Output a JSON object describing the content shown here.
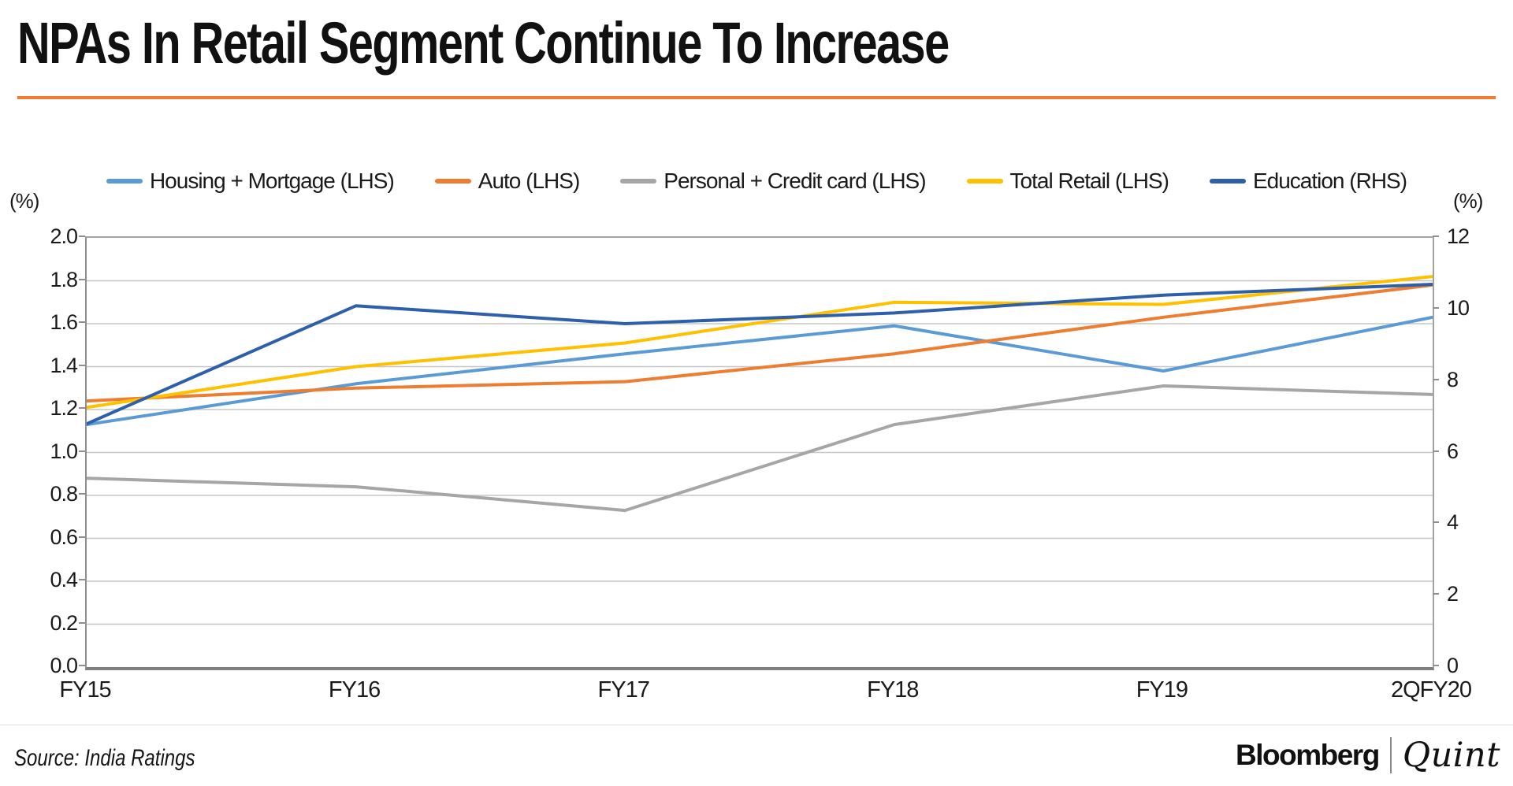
{
  "accent_rule_color": "#ED7D31",
  "chart_data": {
    "type": "line",
    "title": "NPAs In Retail Segment Continue To Increase",
    "categories": [
      "FY15",
      "FY16",
      "FY17",
      "FY18",
      "FY19",
      "2QFY20"
    ],
    "left_axis": {
      "unit": "(%)",
      "min": 0,
      "max": 2,
      "ticks_top_to_bottom": [
        "2.0",
        "1.8",
        "1.6",
        "1.4",
        "1.2",
        "1.0",
        "0.8",
        "0.6",
        "0.4",
        "0.2",
        "0.0"
      ]
    },
    "right_axis": {
      "unit": "(%)",
      "min": 0,
      "max": 12,
      "ticks_top_to_bottom": [
        "12",
        "10",
        "8",
        "6",
        "4",
        "2",
        "0"
      ]
    },
    "grid": true,
    "legend_position": "top-center",
    "series": [
      {
        "name": "Housing + Mortgage (LHS)",
        "axis": "left",
        "color": "#5B9BD5",
        "values": [
          1.13,
          1.32,
          1.46,
          1.59,
          1.38,
          1.63
        ]
      },
      {
        "name": "Auto (LHS)",
        "axis": "left",
        "color": "#ED7D31",
        "values": [
          1.24,
          1.3,
          1.33,
          1.46,
          1.63,
          1.78
        ]
      },
      {
        "name": "Personal + Credit card (LHS)",
        "axis": "left",
        "color": "#A6A6A6",
        "values": [
          0.88,
          0.84,
          0.73,
          1.13,
          1.31,
          1.27
        ]
      },
      {
        "name": "Total Retail (LHS)",
        "axis": "left",
        "color": "#FFC000",
        "values": [
          1.21,
          1.4,
          1.51,
          1.7,
          1.69,
          1.82
        ]
      },
      {
        "name": "Education (RHS)",
        "axis": "right",
        "color": "#2E5FAA",
        "values": [
          6.8,
          10.1,
          9.6,
          9.9,
          10.4,
          10.7
        ]
      }
    ]
  },
  "footer": {
    "source": "Source: India Ratings",
    "brand": {
      "bold": "Bloomberg",
      "separator_bar": "|",
      "serif": "Quint"
    }
  }
}
